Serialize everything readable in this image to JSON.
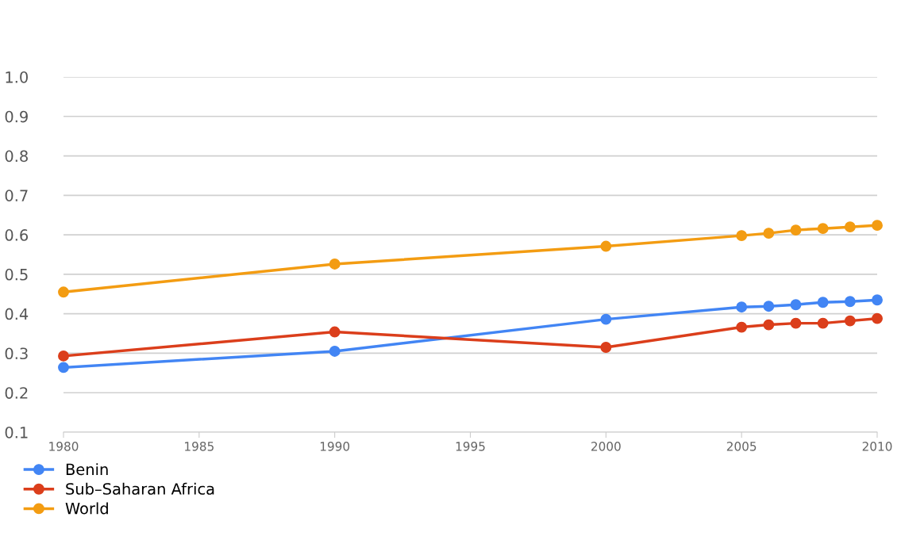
{
  "chart_data": {
    "type": "line",
    "x": [
      1980,
      1990,
      2000,
      2005,
      2006,
      2007,
      2008,
      2009,
      2010
    ],
    "series": [
      {
        "name": "Benin",
        "color": "#4285f4",
        "values": [
          0.264,
          0.305,
          0.386,
          0.417,
          0.419,
          0.423,
          0.429,
          0.431,
          0.435
        ]
      },
      {
        "name": "Sub–Saharan Africa",
        "color": "#db3e1b",
        "values": [
          0.293,
          0.354,
          0.315,
          0.366,
          0.372,
          0.376,
          0.376,
          0.382,
          0.388
        ]
      },
      {
        "name": "World",
        "color": "#f39c12",
        "values": [
          0.455,
          0.526,
          0.571,
          0.598,
          0.604,
          0.612,
          0.616,
          0.62,
          0.624
        ]
      }
    ],
    "xlim": [
      1980,
      2010
    ],
    "xticks": [
      1980,
      1985,
      1990,
      1995,
      2000,
      2005,
      2010
    ],
    "ylim": [
      0.1,
      1.0
    ],
    "yticks": [
      {
        "value": 0.1,
        "label": "0.1"
      },
      {
        "value": 0.2,
        "label": "0.2"
      },
      {
        "value": 0.3,
        "label": "0.3"
      },
      {
        "value": 0.4,
        "label": "0.4"
      },
      {
        "value": 0.5,
        "label": "0.5"
      },
      {
        "value": 0.6,
        "label": "0.6"
      },
      {
        "value": 0.7,
        "label": "0.7"
      },
      {
        "value": 0.8,
        "label": "0.8"
      },
      {
        "value": 0.9,
        "label": "0.9"
      },
      {
        "value": 1.0,
        "label": "1.0"
      }
    ],
    "grid": "y",
    "legend": "bottom left",
    "marker": "circle",
    "line_style": "solid"
  }
}
